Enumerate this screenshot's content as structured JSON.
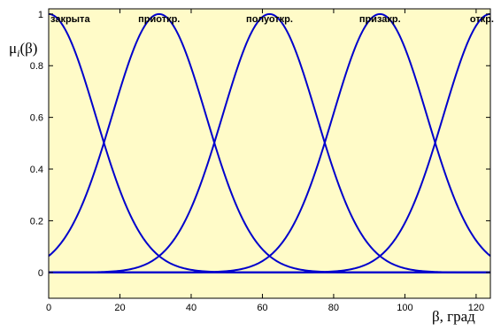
{
  "chart_data": {
    "type": "line",
    "xlabel": "β, град",
    "ylabel_main": "μ",
    "ylabel_sub": "i",
    "ylabel_arg": "(β)",
    "xlim": [
      0,
      124
    ],
    "ylim": [
      -0.1,
      1.02
    ],
    "x_ticks": [
      0,
      20,
      40,
      60,
      80,
      100,
      120
    ],
    "y_ticks": [
      0,
      0.2,
      0.4,
      0.6,
      0.8,
      1
    ],
    "x_tick_labels": [
      "0",
      "20",
      "40",
      "60",
      "80",
      "100",
      "120"
    ],
    "y_tick_labels": [
      "0",
      "0.2",
      "0.4",
      "0.6",
      "0.8",
      "1"
    ],
    "grid": false,
    "background_color": "#fffbc8",
    "line_color": "#0000cc",
    "series": [
      {
        "name": "закрыта",
        "center": 0,
        "sigma": 13.2,
        "x": [
          0,
          10,
          20,
          31,
          40,
          50,
          62
        ],
        "values": [
          1.0,
          0.75,
          0.32,
          0.07,
          0.01,
          0.0,
          0.0
        ]
      },
      {
        "name": "приоткр.",
        "center": 31,
        "sigma": 13.2,
        "x": [
          0,
          10,
          20,
          31,
          40,
          50,
          62
        ],
        "values": [
          0.06,
          0.28,
          0.7,
          1.0,
          0.79,
          0.35,
          0.06
        ]
      },
      {
        "name": "полуоткр.",
        "center": 62,
        "sigma": 13.2,
        "x": [
          31,
          40,
          50,
          62,
          70,
          80,
          93
        ],
        "values": [
          0.06,
          0.25,
          0.66,
          1.0,
          0.83,
          0.4,
          0.06
        ]
      },
      {
        "name": "призакр.",
        "center": 93,
        "sigma": 13.2,
        "x": [
          62,
          70,
          80,
          93,
          100,
          110,
          124
        ],
        "values": [
          0.06,
          0.22,
          0.62,
          1.0,
          0.87,
          0.44,
          0.06
        ]
      },
      {
        "name": "откр.",
        "center": 124,
        "sigma": 13.2,
        "x": [
          93,
          100,
          110,
          120,
          124
        ],
        "values": [
          0.06,
          0.19,
          0.57,
          0.96,
          1.0
        ]
      }
    ]
  }
}
